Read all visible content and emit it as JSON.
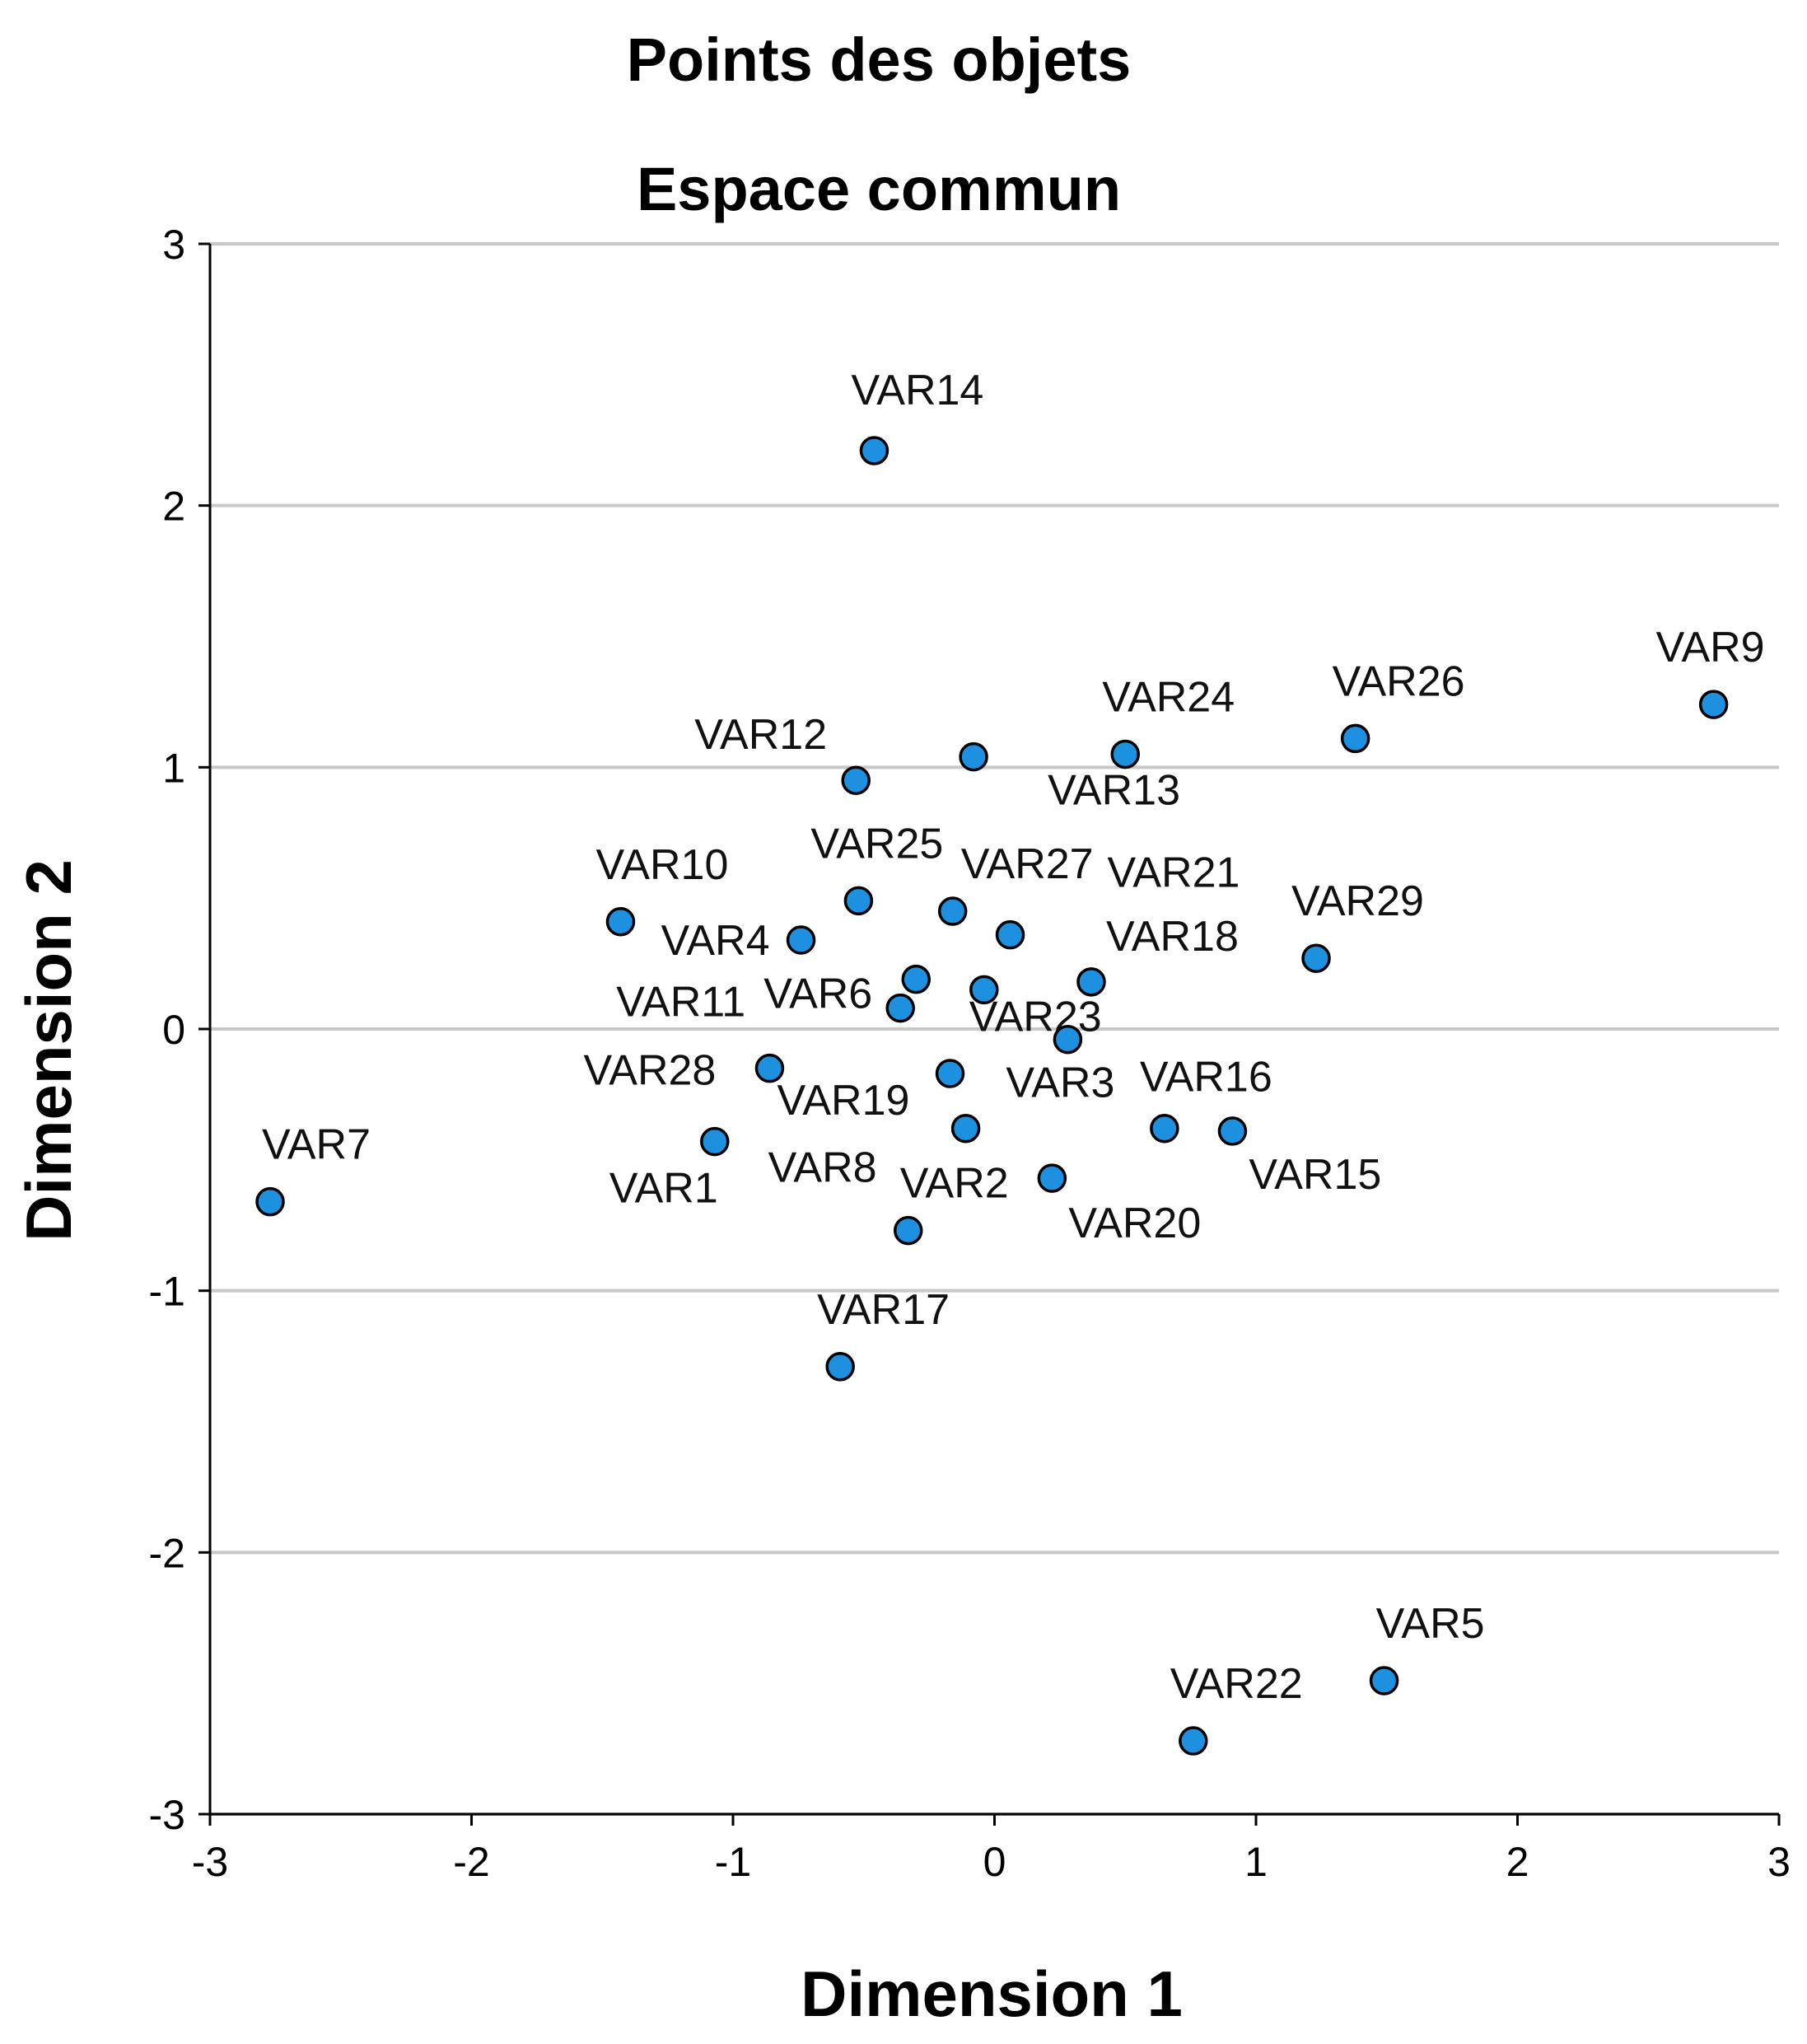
{
  "chart_data": {
    "type": "scatter",
    "title": "Points des objets",
    "subtitle": "Espace commun",
    "xlabel": "Dimension 1",
    "ylabel": "Dimension 2",
    "xlim": [
      -3,
      3
    ],
    "ylim": [
      -3,
      3
    ],
    "xticks": [
      "-3",
      "-2",
      "-1",
      "0",
      "1",
      "2",
      "3"
    ],
    "yticks": [
      "3",
      "2",
      "1",
      "0",
      "-1",
      "-2",
      "-3"
    ],
    "grid": "horizontal",
    "marker_color": "#1E90E0",
    "points": [
      {
        "label": "VAR14",
        "x": -0.46,
        "y": 2.21
      },
      {
        "label": "VAR9",
        "x": 2.75,
        "y": 1.24
      },
      {
        "label": "VAR26",
        "x": 1.38,
        "y": 1.11
      },
      {
        "label": "VAR24",
        "x": 0.5,
        "y": 1.05
      },
      {
        "label": "VAR13",
        "x": -0.08,
        "y": 1.04
      },
      {
        "label": "VAR12",
        "x": -0.53,
        "y": 0.95
      },
      {
        "label": "VAR10",
        "x": -1.43,
        "y": 0.41
      },
      {
        "label": "VAR25",
        "x": -0.52,
        "y": 0.49
      },
      {
        "label": "VAR27",
        "x": -0.16,
        "y": 0.45
      },
      {
        "label": "VAR21",
        "x": 0.06,
        "y": 0.36
      },
      {
        "label": "VAR4",
        "x": -0.74,
        "y": 0.34
      },
      {
        "label": "VAR29",
        "x": 1.23,
        "y": 0.27
      },
      {
        "label": "VAR18",
        "x": 0.37,
        "y": 0.18
      },
      {
        "label": "VAR6",
        "x": -0.3,
        "y": 0.19
      },
      {
        "label": "VAR11",
        "x": -0.36,
        "y": 0.08
      },
      {
        "label": "VAR23",
        "x": -0.04,
        "y": 0.15
      },
      {
        "label": "VAR3",
        "x": 0.28,
        "y": -0.04
      },
      {
        "label": "VAR28",
        "x": -0.86,
        "y": -0.15
      },
      {
        "label": "VAR19",
        "x": -0.17,
        "y": -0.17
      },
      {
        "label": "VAR8",
        "x": -0.11,
        "y": -0.38
      },
      {
        "label": "VAR16",
        "x": 0.65,
        "y": -0.38
      },
      {
        "label": "VAR15",
        "x": 0.91,
        "y": -0.39
      },
      {
        "label": "VAR1",
        "x": -1.07,
        "y": -0.43
      },
      {
        "label": "VAR20",
        "x": 0.22,
        "y": -0.57
      },
      {
        "label": "VAR7",
        "x": -2.77,
        "y": -0.66
      },
      {
        "label": "VAR2",
        "x": -0.33,
        "y": -0.77
      },
      {
        "label": "VAR17",
        "x": -0.59,
        "y": -1.29
      },
      {
        "label": "VAR5",
        "x": 1.49,
        "y": -2.49
      },
      {
        "label": "VAR22",
        "x": 0.76,
        "y": -2.72
      }
    ]
  }
}
